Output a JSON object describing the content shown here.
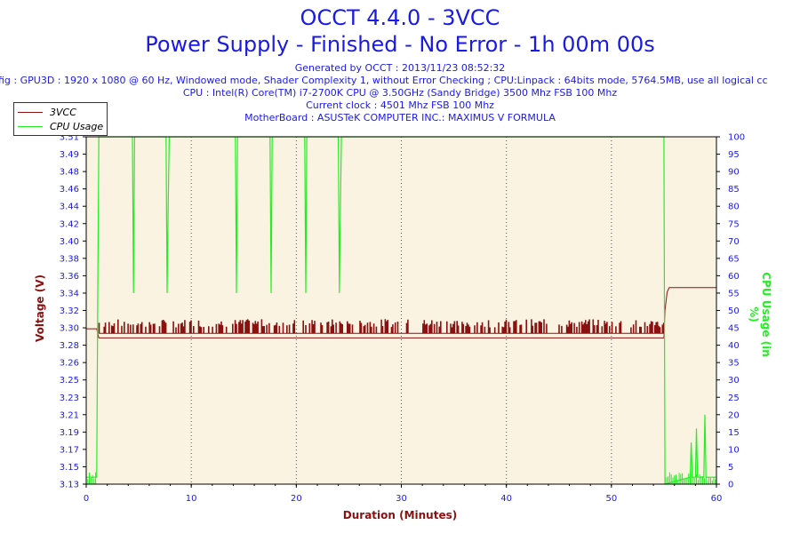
{
  "header": {
    "title": "OCCT 4.4.0 - 3VCC",
    "subtitle": "Power Supply - Finished - No Error - 1h 00m 00s",
    "generated": "Generated by OCCT : 2013/11/23 08:52:32",
    "config": "fig : GPU3D : 1920 x 1080 @ 60 Hz, Windowed mode, Shader Complexity 1, without Error Checking ; CPU:Linpack : 64bits mode, 5764.5MB, use all logical cc",
    "cpu": "CPU : Intel(R) Core(TM) i7-2700K CPU @ 3.50GHz (Sandy Bridge) 3500 Mhz FSB 100 Mhz",
    "clock": "Current clock : 4501 Mhz FSB 100 Mhz",
    "motherboard": "MotherBoard : ASUSTeK COMPUTER INC.: MAXIMUS V FORMULA"
  },
  "colors": {
    "plot_bg": "#fbf3e2",
    "voltage": "#8b1111",
    "cpu": "#22ee22",
    "axis_text": "#1a1ae6",
    "grid": "#555555"
  },
  "chart_data": {
    "type": "line",
    "xlabel": "Duration (Minutes)",
    "ylabel": "Voltage (V)",
    "y2label": "CPU Usage (in %)",
    "xlim": [
      0,
      60
    ],
    "ylim": [
      3.13,
      3.51
    ],
    "y2lim": [
      0,
      100
    ],
    "x_ticks": [
      "0",
      "10",
      "20",
      "30",
      "40",
      "50",
      "60"
    ],
    "y_ticks": [
      "3.13",
      "3.15",
      "3.17",
      "3.19",
      "3.21",
      "3.23",
      "3.25",
      "3.26",
      "3.28",
      "3.30",
      "3.32",
      "3.34",
      "3.36",
      "3.38",
      "3.40",
      "3.42",
      "3.44",
      "3.46",
      "3.48",
      "3.49",
      "3.51"
    ],
    "y2_ticks": [
      "0",
      "5",
      "10",
      "15",
      "20",
      "25",
      "30",
      "35",
      "40",
      "45",
      "50",
      "55",
      "60",
      "65",
      "70",
      "75",
      "80",
      "85",
      "90",
      "95",
      "100"
    ],
    "legend_position": "top-left",
    "grid": true,
    "series": [
      {
        "name": "3VCC",
        "axis": "left",
        "points": [
          [
            0,
            3.3
          ],
          [
            1.0,
            3.3
          ],
          [
            1.2,
            3.29
          ],
          [
            55,
            3.29
          ],
          [
            55.1,
            3.32
          ],
          [
            55.3,
            3.34
          ],
          [
            55.5,
            3.345
          ],
          [
            60,
            3.345
          ]
        ],
        "noise_range": [
          1.2,
          55,
          3.295,
          3.31
        ]
      },
      {
        "name": "CPU Usage",
        "axis": "right",
        "points": [
          [
            0,
            2
          ],
          [
            1.0,
            2
          ],
          [
            1.1,
            55
          ],
          [
            1.2,
            100
          ],
          [
            4.4,
            100
          ],
          [
            4.5,
            55
          ],
          [
            4.6,
            100
          ],
          [
            7.6,
            100
          ],
          [
            7.7,
            55
          ],
          [
            7.8,
            80
          ],
          [
            7.9,
            100
          ],
          [
            14.2,
            100
          ],
          [
            14.3,
            55
          ],
          [
            14.4,
            100
          ],
          [
            17.5,
            100
          ],
          [
            17.6,
            55
          ],
          [
            17.7,
            100
          ],
          [
            20.8,
            100
          ],
          [
            20.9,
            55
          ],
          [
            21.0,
            100
          ],
          [
            24.0,
            100
          ],
          [
            24.1,
            55
          ],
          [
            24.2,
            80
          ],
          [
            24.3,
            100
          ],
          [
            55.0,
            100
          ],
          [
            55.1,
            0
          ],
          [
            57.5,
            2
          ],
          [
            57.6,
            12
          ],
          [
            57.7,
            2
          ],
          [
            58.0,
            2
          ],
          [
            58.1,
            16
          ],
          [
            58.2,
            2
          ],
          [
            58.8,
            2
          ],
          [
            58.9,
            20
          ],
          [
            59.0,
            2
          ],
          [
            60,
            2
          ]
        ]
      }
    ]
  }
}
